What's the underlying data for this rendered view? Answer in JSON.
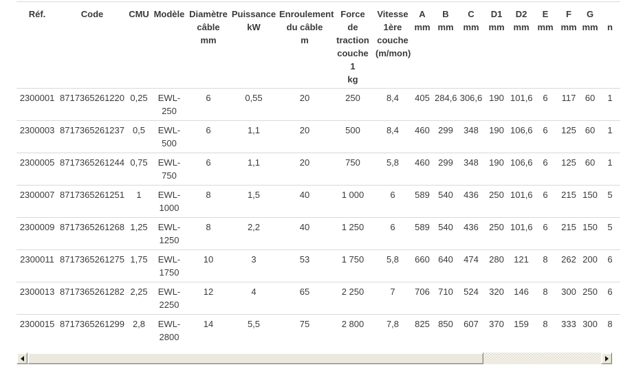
{
  "colors": {
    "text": "#3a3a3a",
    "row_border": "#d9d9d9",
    "scrollbar_face": "#ebe8dd",
    "scrollbar_track_light": "#f7f5ef",
    "scrollbar_track_dark": "#e5e1d3",
    "page_background": "#ffffff"
  },
  "table": {
    "columns": [
      {
        "id": "ref",
        "label": "Réf."
      },
      {
        "id": "code",
        "label": "Code"
      },
      {
        "id": "cmu",
        "label": "CMU"
      },
      {
        "id": "modele",
        "label": "Modèle"
      },
      {
        "id": "diametre_cable",
        "label": "Diamètre\ncâble\nmm"
      },
      {
        "id": "puissance",
        "label": "Puissance\nkW"
      },
      {
        "id": "enroulement",
        "label": "Enroulement\ndu câble\nm"
      },
      {
        "id": "force_traction",
        "label": "Force\nde\ntraction\ncouche\n1\nkg"
      },
      {
        "id": "vitesse",
        "label": "Vitesse\n1ère\ncouche\n(m/mon)"
      },
      {
        "id": "a",
        "label": "A\nmm"
      },
      {
        "id": "b",
        "label": "B\nmm"
      },
      {
        "id": "c",
        "label": "C\nmm"
      },
      {
        "id": "d1",
        "label": "D1\nmm"
      },
      {
        "id": "d2",
        "label": "D2\nmm"
      },
      {
        "id": "e",
        "label": "E\nmm"
      },
      {
        "id": "f",
        "label": "F\nmm"
      },
      {
        "id": "g",
        "label": "G\nmm"
      },
      {
        "id": "partial",
        "label": "\nn"
      }
    ],
    "rows": [
      [
        "2300001",
        "8717365261220",
        "0,25",
        "EWL-250",
        "6",
        "0,55",
        "20",
        "250",
        "8,4",
        "405",
        "284,6",
        "306,6",
        "190",
        "101,6",
        "6",
        "117",
        "60",
        "1"
      ],
      [
        "2300003",
        "8717365261237",
        "0,5",
        "EWL-500",
        "6",
        "1,1",
        "20",
        "500",
        "8,4",
        "460",
        "299",
        "348",
        "190",
        "106,6",
        "6",
        "125",
        "60",
        "1"
      ],
      [
        "2300005",
        "8717365261244",
        "0,75",
        "EWL-750",
        "6",
        "1,1",
        "20",
        "750",
        "5,8",
        "460",
        "299",
        "348",
        "190",
        "106,6",
        "6",
        "125",
        "60",
        "1"
      ],
      [
        "2300007",
        "8717365261251",
        "1",
        "EWL-1000",
        "8",
        "1,5",
        "40",
        "1 000",
        "6",
        "589",
        "540",
        "436",
        "250",
        "101,6",
        "6",
        "215",
        "150",
        "5"
      ],
      [
        "2300009",
        "8717365261268",
        "1,25",
        "EWL-1250",
        "8",
        "2,2",
        "40",
        "1 250",
        "6",
        "589",
        "540",
        "436",
        "250",
        "101,6",
        "6",
        "215",
        "150",
        "5"
      ],
      [
        "2300011",
        "8717365261275",
        "1,75",
        "EWL-1750",
        "10",
        "3",
        "53",
        "1 750",
        "5,8",
        "660",
        "640",
        "474",
        "280",
        "121",
        "8",
        "262",
        "200",
        "6"
      ],
      [
        "2300013",
        "8717365261282",
        "2,25",
        "EWL-2250",
        "12",
        "4",
        "65",
        "2 250",
        "7",
        "706",
        "710",
        "524",
        "320",
        "146",
        "8",
        "300",
        "250",
        "6"
      ],
      [
        "2300015",
        "8717365261299",
        "2,8",
        "EWL-2800",
        "14",
        "5,5",
        "75",
        "2 800",
        "7,8",
        "825",
        "850",
        "607",
        "370",
        "159",
        "8",
        "333",
        "300",
        "8"
      ]
    ]
  },
  "scrollbar": {
    "left_arrow_icon": "arrow-left",
    "right_arrow_icon": "arrow-right"
  }
}
